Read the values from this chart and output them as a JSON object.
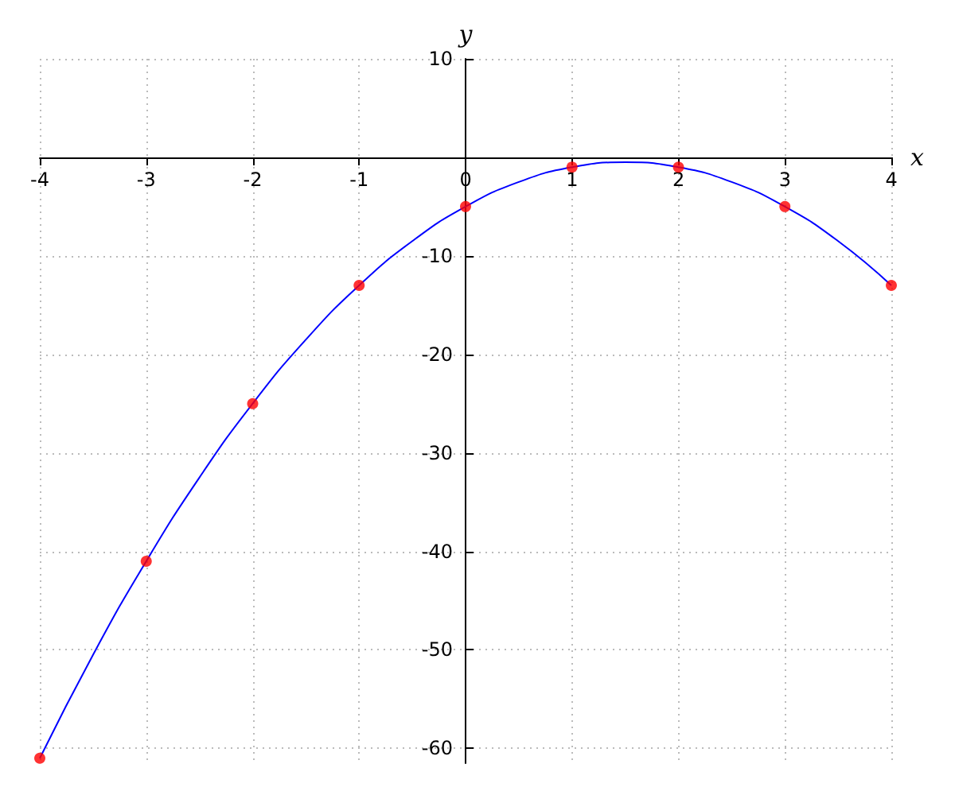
{
  "chart_data": {
    "type": "line",
    "xlabel": "x",
    "ylabel": "y",
    "xlim": [
      -4,
      4
    ],
    "xticks": [
      -4,
      -3,
      -2,
      -1,
      0,
      1,
      2,
      3,
      4
    ],
    "ylim": [
      -61.5,
      10
    ],
    "yticks": [
      {
        "value": -60,
        "label": "-60"
      },
      {
        "value": -50,
        "label": "-50"
      },
      {
        "value": -40,
        "label": "-40"
      },
      {
        "value": -30,
        "label": "-30"
      },
      {
        "value": -20,
        "label": "-20"
      },
      {
        "value": -10,
        "label": "-10"
      },
      {
        "value": 0,
        "label": null
      },
      {
        "value": 10,
        "label": "10"
      }
    ],
    "grid": true,
    "series": [
      {
        "color": "#0000ff",
        "marker": "none",
        "line_style": "solid",
        "x": [
          -4,
          -3.5,
          -3,
          -2.5,
          -2,
          -1.5,
          -1,
          -0.5,
          0,
          0.5,
          1,
          1.5,
          2,
          2.5,
          3,
          3.5,
          4
        ],
        "values": [
          -61,
          -50.5,
          -41,
          -32.5,
          -25,
          -18.5,
          -13,
          -8.5,
          -5,
          -2.5,
          -1,
          -0.5,
          -1,
          -2.5,
          -5,
          -8.5,
          -13
        ]
      },
      {
        "type": "scatter",
        "color": "#ff0000",
        "marker": "circle",
        "x": [
          -4,
          -3,
          -2,
          -1,
          0,
          1,
          2,
          3,
          4
        ],
        "values": [
          -61,
          -41,
          -25,
          -13,
          -5,
          -1,
          -1,
          -5,
          -13
        ]
      }
    ]
  }
}
